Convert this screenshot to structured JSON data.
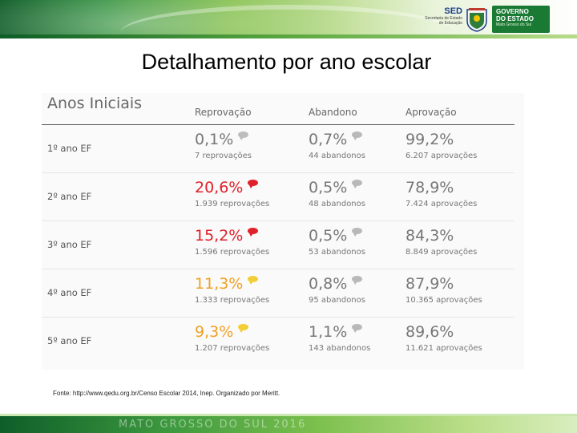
{
  "banner": {
    "sed_title": "SED",
    "sed_line1": "Secretaria de Estado",
    "sed_line2": "de Educação",
    "gov_line1": "GOVERNO",
    "gov_line2": "DO ESTADO",
    "gov_sub": "Mato Grosso do Sul"
  },
  "slide_title": "Detalhamento por ano escolar",
  "table": {
    "section_title": "Anos Iniciais",
    "columns": [
      "Reprovação",
      "Abandono",
      "Aprovação"
    ],
    "rows": [
      {
        "grade": "1º ano EF",
        "reprovacao": {
          "pct": "0,1%",
          "count": "7 reprovações",
          "color": "#777777",
          "bubble": "#bdbdbd"
        },
        "abandono": {
          "pct": "0,7%",
          "count": "44 abandonos"
        },
        "aprovacao": {
          "pct": "99,2%",
          "count": "6.207 aprovações"
        }
      },
      {
        "grade": "2º ano EF",
        "reprovacao": {
          "pct": "20,6%",
          "count": "1.939 reprovações",
          "color": "#e0202a",
          "bubble": "#e0202a"
        },
        "abandono": {
          "pct": "0,5%",
          "count": "48 abandonos"
        },
        "aprovacao": {
          "pct": "78,9%",
          "count": "7.424 aprovações"
        }
      },
      {
        "grade": "3º ano EF",
        "reprovacao": {
          "pct": "15,2%",
          "count": "1.596 reprovações",
          "color": "#e0202a",
          "bubble": "#e0202a"
        },
        "abandono": {
          "pct": "0,5%",
          "count": "53 abandonos"
        },
        "aprovacao": {
          "pct": "84,3%",
          "count": "8.849 aprovações"
        }
      },
      {
        "grade": "4º ano EF",
        "reprovacao": {
          "pct": "11,3%",
          "count": "1.333 reprovações",
          "color": "#f0a022",
          "bubble": "#f2cf3a"
        },
        "abandono": {
          "pct": "0,8%",
          "count": "95 abandonos"
        },
        "aprovacao": {
          "pct": "87,9%",
          "count": "10.365 aprovações"
        }
      },
      {
        "grade": "5º ano EF",
        "reprovacao": {
          "pct": "9,3%",
          "count": "1.207 reprovações",
          "color": "#f0a022",
          "bubble": "#f2cf3a"
        },
        "abandono": {
          "pct": "1,1%",
          "count": "143 abandonos"
        },
        "aprovacao": {
          "pct": "89,6%",
          "count": "11.621 aprovações"
        }
      }
    ]
  },
  "source": "Fonte: http://www.qedu.org.br/Censo Escolar 2014, Inep. Organizado por Meritt.",
  "footer": "MATO GROSSO DO SUL 2016"
}
